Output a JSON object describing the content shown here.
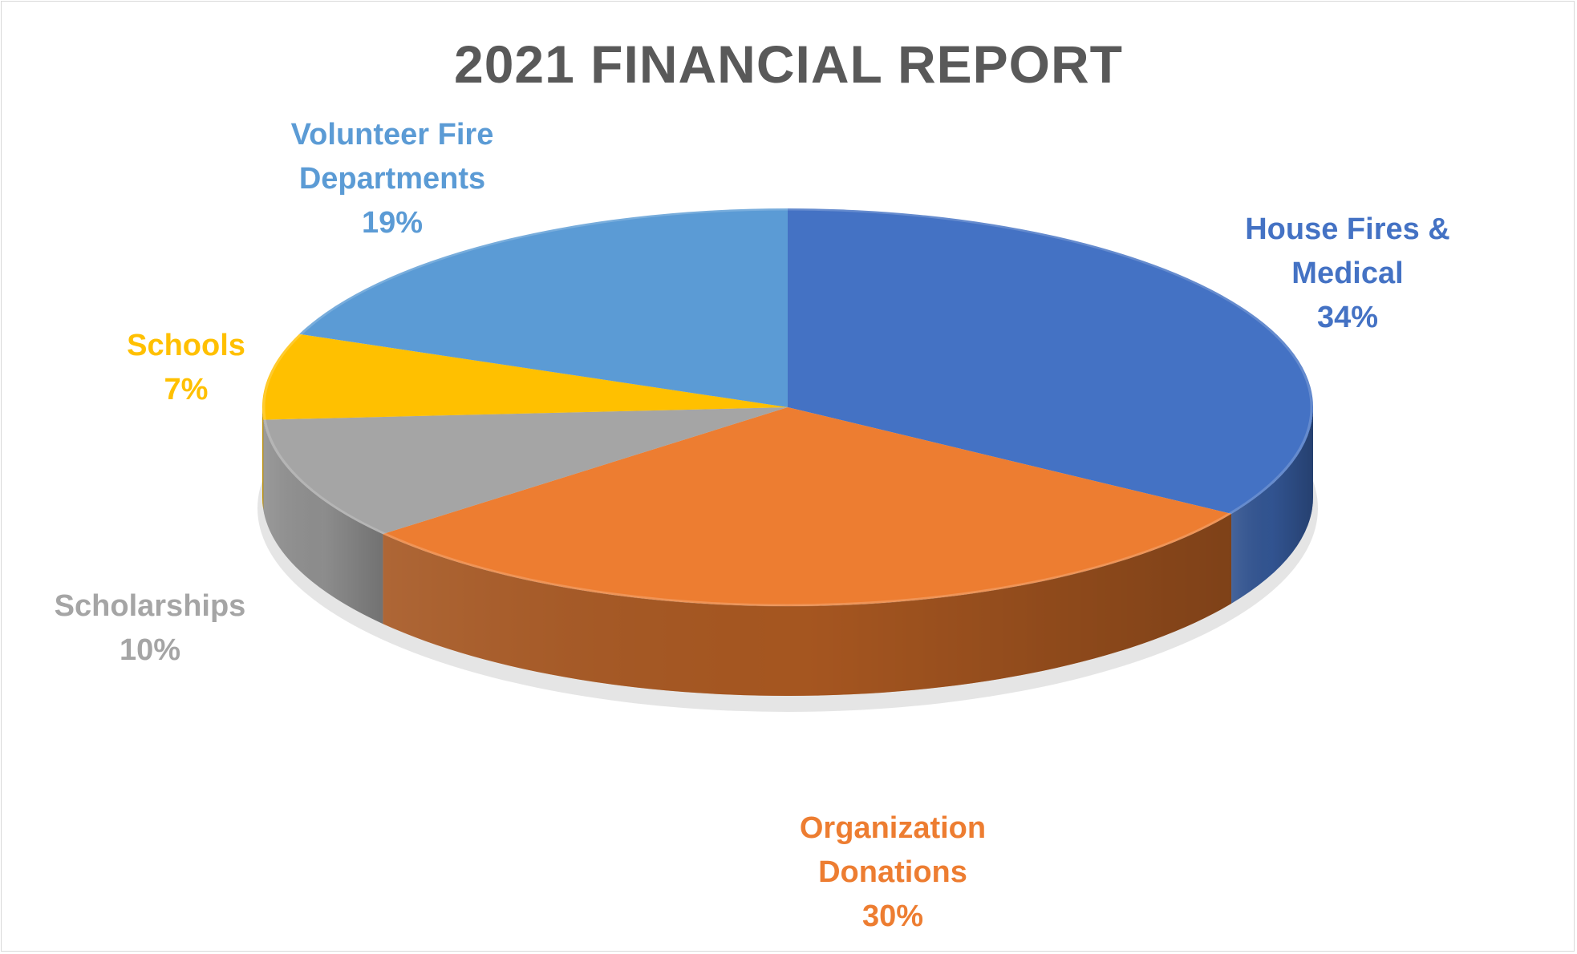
{
  "chart_data": {
    "type": "pie",
    "title": "2021 FINANCIAL REPORT",
    "slices": [
      {
        "label_lines": [
          "House Fires &",
          "Medical"
        ],
        "value_label": "34%",
        "value": 34,
        "color": "#4472c4",
        "side_color": "#1f355d"
      },
      {
        "label_lines": [
          "Organization",
          "Donations"
        ],
        "value_label": "30%",
        "value": 30,
        "color": "#ed7d31",
        "side_color": "#5e2e10"
      },
      {
        "label_lines": [
          "Scholarships"
        ],
        "value_label": "10%",
        "value": 10,
        "color": "#a5a5a5",
        "side_color": "#7a7a7a"
      },
      {
        "label_lines": [
          "Schools"
        ],
        "value_label": "7%",
        "value": 7,
        "color": "#ffc000",
        "side_color": "#8a6800"
      },
      {
        "label_lines": [
          "Volunteer Fire",
          "Departments"
        ],
        "value_label": "19%",
        "value": 19,
        "color": "#5b9bd5",
        "side_color": "#2e5a82"
      }
    ],
    "legend": "none",
    "data_labels": "outside"
  }
}
